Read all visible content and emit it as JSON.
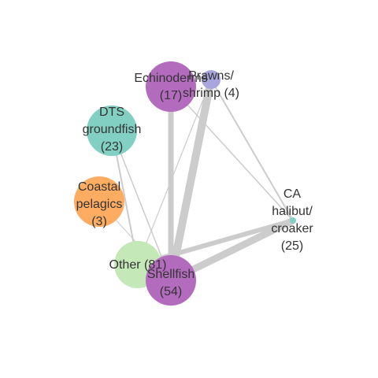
{
  "diagram": {
    "type": "network",
    "nodes": [
      {
        "id": "echinoderms",
        "label_lines": [
          "Echinoderms",
          "(17)"
        ],
        "count": 17,
        "color": "#b36bbd"
      },
      {
        "id": "prawns",
        "label_lines": [
          "Prawns/",
          "shrimp (4)"
        ],
        "count": 4,
        "color": "#a9a6dd"
      },
      {
        "id": "dts",
        "label_lines": [
          "DTS",
          "groundfish",
          "(23)"
        ],
        "count": 23,
        "color": "#82d0c3"
      },
      {
        "id": "coastal",
        "label_lines": [
          "Coastal",
          "pelagics",
          "(3)"
        ],
        "count": 3,
        "color": "#fdac62"
      },
      {
        "id": "halibut",
        "label_lines": [
          "CA",
          "halibut/",
          "croaker",
          "(25)"
        ],
        "count": 25,
        "color": "#82d0c3"
      },
      {
        "id": "other",
        "label_lines": [
          "Other (81)"
        ],
        "count": 81,
        "color": "#c5e8b9"
      },
      {
        "id": "shellfish",
        "label_lines": [
          "Shellfish",
          "(54)"
        ],
        "count": 54,
        "color": "#b36bbd"
      }
    ],
    "edges": [
      {
        "source": "prawns",
        "target": "shellfish",
        "weight": 10
      },
      {
        "source": "echinoderms",
        "target": "shellfish",
        "weight": 7
      },
      {
        "source": "halibut",
        "target": "shellfish",
        "weight": 9
      },
      {
        "source": "halibut",
        "target": "other",
        "weight": 6
      },
      {
        "source": "prawns",
        "target": "halibut",
        "weight": 2
      },
      {
        "source": "echinoderms",
        "target": "halibut",
        "weight": 1.5
      },
      {
        "source": "dts",
        "target": "other",
        "weight": 2
      },
      {
        "source": "dts",
        "target": "shellfish",
        "weight": 1.5
      },
      {
        "source": "prawns",
        "target": "other",
        "weight": 1.2
      },
      {
        "source": "coastal",
        "target": "shellfish",
        "weight": 1
      }
    ]
  }
}
